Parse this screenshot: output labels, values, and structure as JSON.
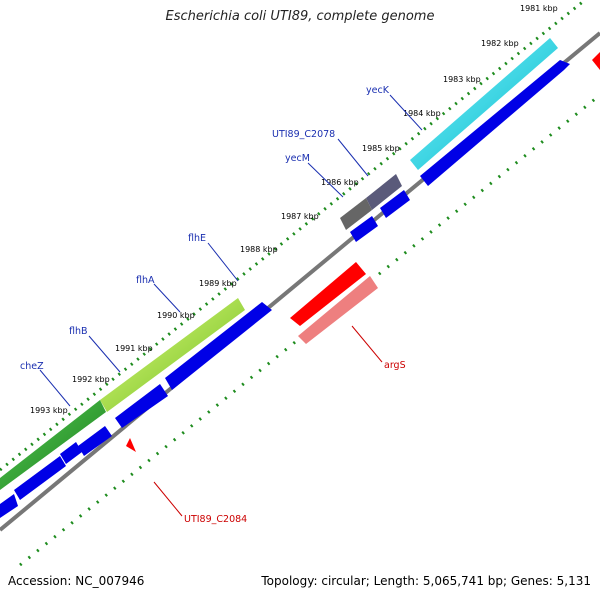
{
  "title": "Escherichia coli UTI89, complete genome",
  "footer": {
    "accession": "Accession: NC_007946",
    "summary": "Topology: circular; Length: 5,065,741 bp; Genes: 5,131"
  },
  "kbp_labels": [
    "1981 kbp",
    "1982 kbp",
    "1983 kbp",
    "1984 kbp",
    "1985 kbp",
    "1986 kbp",
    "1987 kbp",
    "1988 kbp",
    "1989 kbp",
    "1990 kbp",
    "1991 kbp",
    "1992 kbp",
    "1993 kbp"
  ],
  "gene_labels": {
    "yecK": "yecK",
    "uti89_c2078": "UTI89_C2078",
    "yecM": "yecM",
    "flhE": "flhE",
    "flhA": "flhA",
    "flhB": "flhB",
    "cheZ": "cheZ",
    "argS": "argS",
    "uti89_c2084": "UTI89_C2084"
  },
  "colors": {
    "cds_blue": "#0000e6",
    "cds_red": "#ff0000",
    "tick_green": "#1e8c1e",
    "cyan": "#19d9e6",
    "green": "#2a9a2a",
    "lightgreen": "#9ade2a",
    "gray": "#555566",
    "pink": "#ee7f7f"
  }
}
